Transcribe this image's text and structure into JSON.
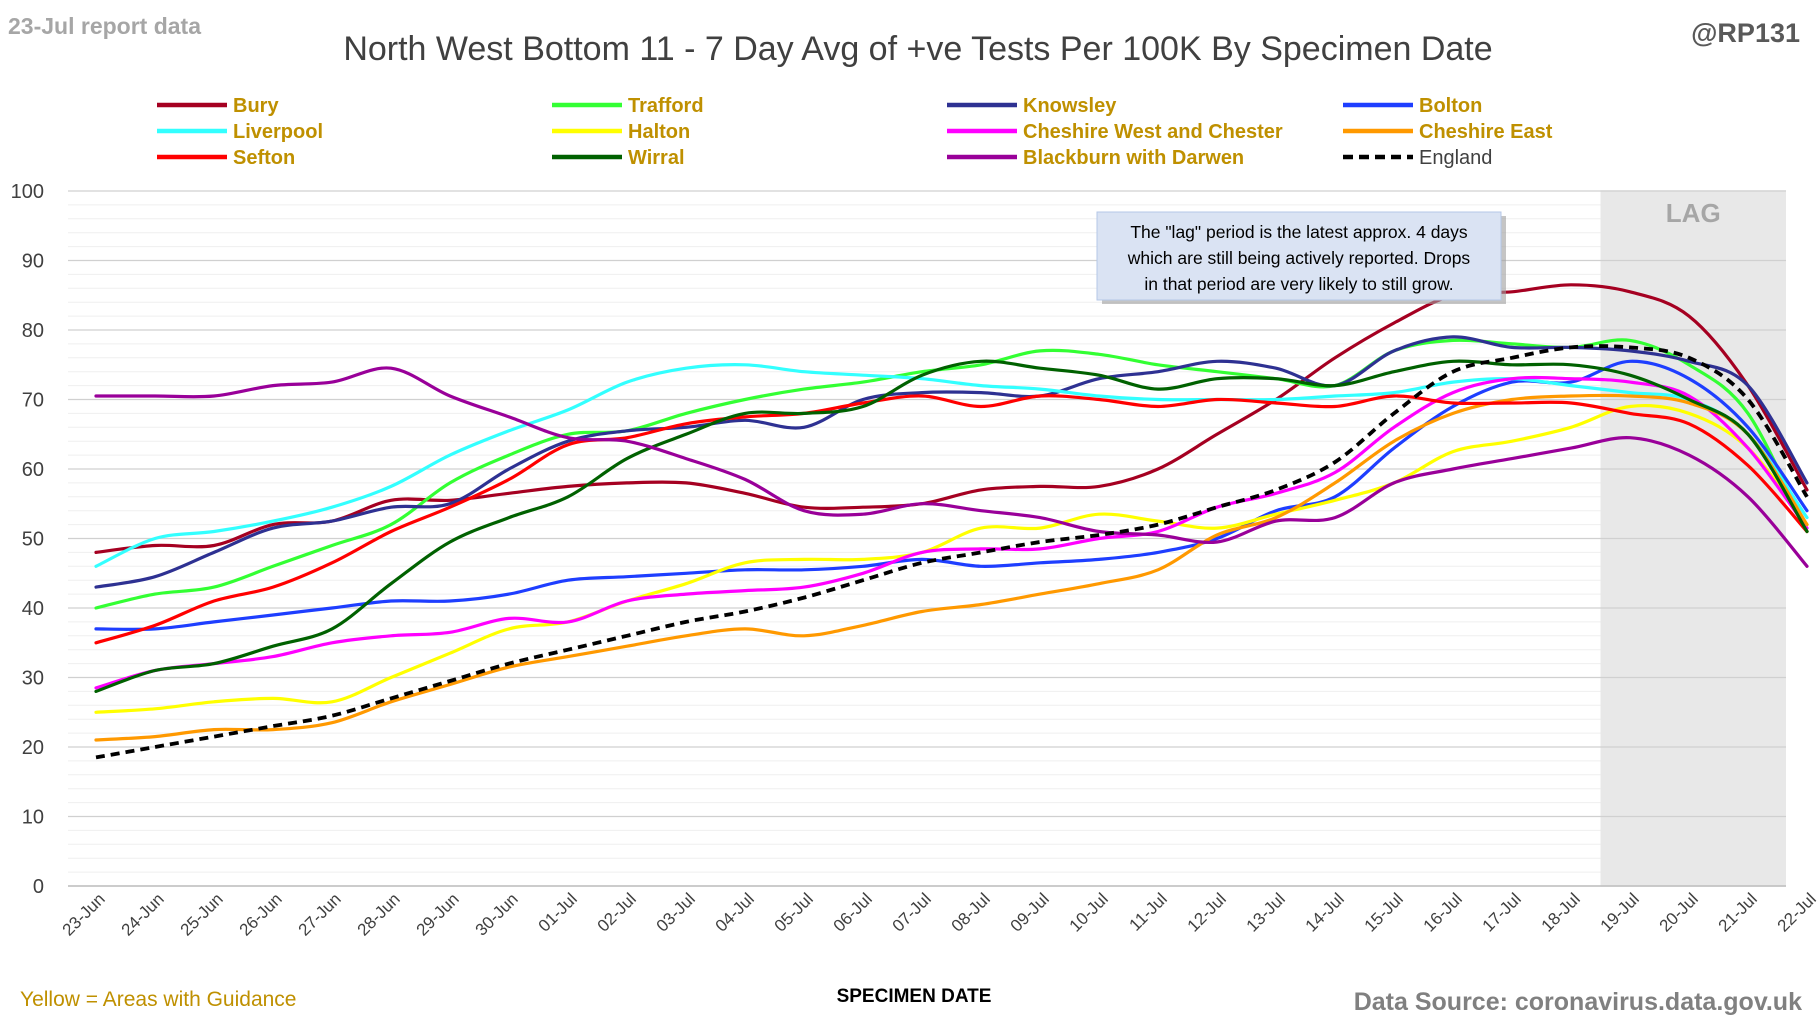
{
  "header": {
    "report_label": "23-Jul report data",
    "handle": "@RP131"
  },
  "footer": {
    "note": "Yellow = Areas with Guidance",
    "source": "Data Source: coronavirus.data.gov.uk"
  },
  "annotation": {
    "lag_label": "LAG",
    "callout_lines": [
      "The \"lag\" period is the latest approx. 4 days",
      "which are still being actively reported.  Drops",
      "in that period are very likely to still grow."
    ]
  },
  "colors": {
    "label_gold": "#BF9000",
    "lag_shade": "#E8E8E8",
    "callout_fill": "#DAE3F3",
    "grid": "#D9D9D9"
  },
  "chart_data": {
    "type": "line",
    "title": "North West Bottom 11 - 7 Day Avg of +ve Tests Per 100K By Specimen Date",
    "xlabel": "SPECIMEN DATE",
    "ylabel": "",
    "ylim": [
      0,
      100
    ],
    "yticks": [
      0,
      10,
      20,
      30,
      40,
      50,
      60,
      70,
      80,
      90,
      100
    ],
    "grid": true,
    "legend_position": "top",
    "lag_start": "19-Jul",
    "categories": [
      "23-Jun",
      "24-Jun",
      "25-Jun",
      "26-Jun",
      "27-Jun",
      "28-Jun",
      "29-Jun",
      "30-Jun",
      "01-Jul",
      "02-Jul",
      "03-Jul",
      "04-Jul",
      "05-Jul",
      "06-Jul",
      "07-Jul",
      "08-Jul",
      "09-Jul",
      "10-Jul",
      "11-Jul",
      "12-Jul",
      "13-Jul",
      "14-Jul",
      "15-Jul",
      "16-Jul",
      "17-Jul",
      "18-Jul",
      "19-Jul",
      "20-Jul",
      "21-Jul",
      "22-Jul"
    ],
    "series": [
      {
        "name": "Bury",
        "color": "#A50021",
        "dashed": false,
        "values": [
          48,
          49,
          49,
          52,
          52.5,
          55.5,
          55.5,
          56.5,
          57.5,
          58,
          58,
          56.5,
          54.5,
          54.5,
          55,
          57,
          57.5,
          57.5,
          60,
          65,
          70,
          76,
          81,
          85,
          85.5,
          86.5,
          85.5,
          82,
          72,
          57
        ]
      },
      {
        "name": "Trafford",
        "color": "#33FF33",
        "dashed": false,
        "values": [
          40,
          42,
          43,
          46,
          49,
          52,
          58,
          62,
          65,
          65.5,
          68,
          70,
          71.5,
          72.5,
          74,
          75,
          77,
          76.5,
          75,
          74,
          73,
          72,
          77,
          78.5,
          78,
          77.5,
          78.5,
          75,
          68,
          51
        ]
      },
      {
        "name": "Knowsley",
        "color": "#2E3192",
        "dashed": false,
        "values": [
          43,
          44.5,
          48,
          51.5,
          52.5,
          54.5,
          55,
          60,
          64,
          65.5,
          66,
          67,
          66,
          70,
          71,
          71,
          70.5,
          73,
          74,
          75.5,
          74.5,
          72,
          77,
          79,
          77.5,
          77.5,
          77,
          75.5,
          72,
          58
        ]
      },
      {
        "name": "Bolton",
        "color": "#1E3EFF",
        "dashed": false,
        "values": [
          37,
          37,
          38,
          39,
          40,
          41,
          41,
          42,
          44,
          44.5,
          45,
          45.5,
          45.5,
          46,
          47,
          46,
          46.5,
          47,
          48,
          50,
          54,
          56,
          63,
          69,
          72.5,
          72.5,
          75.5,
          73,
          66,
          54
        ]
      },
      {
        "name": "Liverpool",
        "color": "#33FFFF",
        "dashed": false,
        "values": [
          46,
          50,
          51,
          52.5,
          54.5,
          57.5,
          62,
          65.5,
          68.5,
          72.5,
          74.5,
          75,
          74,
          73.5,
          73,
          72,
          71.5,
          70.5,
          70,
          70,
          70,
          70.5,
          71,
          72.5,
          73,
          72,
          71,
          70,
          65,
          53
        ]
      },
      {
        "name": "Halton",
        "color": "#FFFF00",
        "dashed": false,
        "values": [
          25,
          25.5,
          26.5,
          27,
          26.5,
          30,
          33.5,
          37,
          38,
          41,
          43.5,
          46.5,
          47,
          47,
          48,
          51.5,
          51.5,
          53.5,
          52.5,
          51.5,
          53.5,
          55.5,
          58,
          62.5,
          64,
          66,
          69,
          68,
          63,
          52
        ]
      },
      {
        "name": "Cheshire West and Chester",
        "color": "#FF00FF",
        "dashed": false,
        "values": [
          28.5,
          31,
          32,
          33,
          35,
          36,
          36.5,
          38.5,
          38,
          41,
          42,
          42.5,
          43,
          45,
          48,
          48.5,
          48.5,
          50,
          51,
          54.5,
          56.5,
          59.5,
          66,
          71,
          73,
          73,
          72.5,
          70.5,
          63,
          51.5
        ]
      },
      {
        "name": "Cheshire East",
        "color": "#FF9900",
        "dashed": false,
        "values": [
          21,
          21.5,
          22.5,
          22.5,
          23.5,
          26.5,
          29,
          31.5,
          33,
          34.5,
          36,
          37,
          36,
          37.5,
          39.5,
          40.5,
          42,
          43.5,
          45.5,
          50.5,
          53,
          58,
          64,
          68,
          70,
          70.5,
          70.5,
          69.5,
          65,
          52
        ]
      },
      {
        "name": "Sefton",
        "color": "#FF0000",
        "dashed": false,
        "values": [
          35,
          37.5,
          41,
          43,
          46.5,
          51,
          54.5,
          58.5,
          63.5,
          64.5,
          66.5,
          67.5,
          68,
          69.5,
          70.5,
          69,
          70.5,
          70,
          69,
          70,
          69.5,
          69,
          70.5,
          69.5,
          69.5,
          69.5,
          68,
          66.5,
          60.5,
          51
        ]
      },
      {
        "name": "Wirral",
        "color": "#006100",
        "dashed": false,
        "values": [
          28,
          31,
          32,
          34.5,
          37,
          43.5,
          49.5,
          53,
          56,
          61.5,
          65,
          68,
          68,
          69,
          73.5,
          75.5,
          74.5,
          73.5,
          71.5,
          73,
          73,
          72,
          74,
          75.5,
          75,
          75,
          73.5,
          70,
          65,
          51
        ]
      },
      {
        "name": "Blackburn with Darwen",
        "color": "#990099",
        "dashed": false,
        "values": [
          70.5,
          70.5,
          70.5,
          72,
          72.5,
          74.5,
          70.5,
          67.5,
          64.5,
          64,
          61.5,
          58.5,
          54,
          53.5,
          55,
          54,
          53,
          51,
          50.5,
          49.5,
          52.5,
          53,
          58,
          60,
          61.5,
          63,
          64.5,
          62,
          56,
          46
        ]
      },
      {
        "name": "England",
        "color": "#000000",
        "dashed": true,
        "values": [
          18.5,
          20,
          21.5,
          23,
          24.5,
          27,
          29.5,
          32,
          34,
          36,
          38,
          39.5,
          41.5,
          44,
          46.5,
          48,
          49.5,
          50.5,
          52,
          54.5,
          57,
          61,
          68,
          74,
          76,
          77.5,
          77.5,
          76,
          70,
          56
        ]
      }
    ]
  }
}
